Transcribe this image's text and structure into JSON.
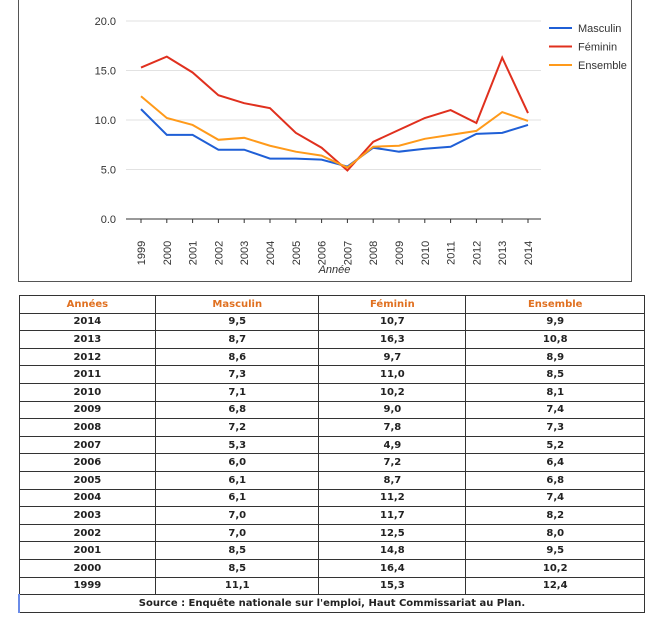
{
  "chart_data": {
    "type": "line",
    "x_label": "Année",
    "categories": [
      "1999",
      "2000",
      "2001",
      "2002",
      "2003",
      "2004",
      "2005",
      "2006",
      "2007",
      "2008",
      "2009",
      "2010",
      "2011",
      "2012",
      "2013",
      "2014"
    ],
    "series": [
      {
        "name": "Masculin",
        "color": "#1f5fd6",
        "values": [
          11.1,
          8.5,
          8.5,
          7.0,
          7.0,
          6.1,
          6.1,
          6.0,
          5.3,
          7.2,
          6.8,
          7.1,
          7.3,
          8.6,
          8.7,
          9.5
        ]
      },
      {
        "name": "Féminin",
        "color": "#e0301e",
        "values": [
          15.3,
          16.4,
          14.8,
          12.5,
          11.7,
          11.2,
          8.7,
          7.2,
          4.9,
          7.8,
          9.0,
          10.2,
          11.0,
          9.7,
          16.3,
          10.7
        ]
      },
      {
        "name": "Ensemble",
        "color": "#ff9a1a",
        "values": [
          12.4,
          10.2,
          9.5,
          8.0,
          8.2,
          7.4,
          6.8,
          6.4,
          5.2,
          7.3,
          7.4,
          8.1,
          8.5,
          8.9,
          10.8,
          9.9
        ]
      }
    ],
    "ylim": [
      0,
      20
    ],
    "yticks": [
      {
        "value": 0,
        "label": "0.0"
      },
      {
        "value": 5,
        "label": "5.0"
      },
      {
        "value": 10,
        "label": "10.0"
      },
      {
        "value": 15,
        "label": "15.0"
      },
      {
        "value": 20,
        "label": "20.0"
      }
    ],
    "grid": true,
    "legend": "right"
  },
  "table": {
    "header": [
      "Années",
      "Masculin",
      "Féminin",
      "Ensemble"
    ],
    "rows": [
      [
        "2014",
        "9,5",
        "10,7",
        "9,9"
      ],
      [
        "2013",
        "8,7",
        "16,3",
        "10,8"
      ],
      [
        "2012",
        "8,6",
        "9,7",
        "8,9"
      ],
      [
        "2011",
        "7,3",
        "11,0",
        "8,5"
      ],
      [
        "2010",
        "7,1",
        "10,2",
        "8,1"
      ],
      [
        "2009",
        "6,8",
        "9,0",
        "7,4"
      ],
      [
        "2008",
        "7,2",
        "7,8",
        "7,3"
      ],
      [
        "2007",
        "5,3",
        "4,9",
        "5,2"
      ],
      [
        "2006",
        "6,0",
        "7,2",
        "6,4"
      ],
      [
        "2005",
        "6,1",
        "8,7",
        "6,8"
      ],
      [
        "2004",
        "6,1",
        "11,2",
        "7,4"
      ],
      [
        "2003",
        "7,0",
        "11,7",
        "8,2"
      ],
      [
        "2002",
        "7,0",
        "12,5",
        "8,0"
      ],
      [
        "2001",
        "8,5",
        "14,8",
        "9,5"
      ],
      [
        "2000",
        "8,5",
        "16,4",
        "10,2"
      ],
      [
        "1999",
        "11,1",
        "15,3",
        "12,4"
      ]
    ],
    "source": "Source : Enquête nationale sur l'emploi, Haut Commissariat au Plan."
  }
}
